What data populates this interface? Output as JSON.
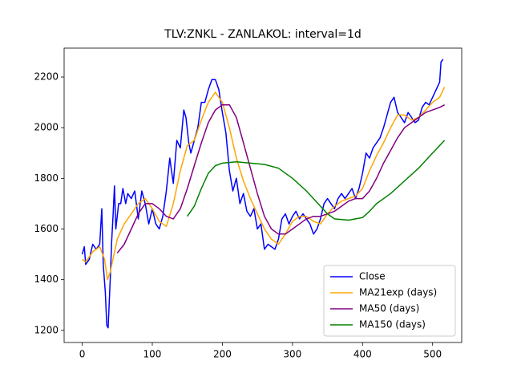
{
  "chart_data": {
    "type": "line",
    "title": "TLV:ZNKL - ZANLAKOL: interval=1d",
    "xlim": [
      -25.8,
      541.5
    ],
    "ylim": [
      1152,
      2314
    ],
    "xticks": [
      0,
      100,
      200,
      300,
      400,
      500
    ],
    "yticks": [
      1200,
      1400,
      1600,
      1800,
      2000,
      2200
    ],
    "legend": "lower right",
    "series": [
      {
        "name": "Close",
        "color": "#0000ff",
        "x": [
          0,
          3,
          5,
          10,
          15,
          20,
          25,
          28,
          30,
          33,
          35,
          37,
          40,
          42,
          44,
          46,
          48,
          52,
          55,
          58,
          62,
          65,
          70,
          75,
          80,
          85,
          90,
          95,
          100,
          105,
          110,
          115,
          120,
          125,
          130,
          135,
          140,
          145,
          148,
          152,
          155,
          160,
          165,
          170,
          175,
          180,
          185,
          190,
          195,
          200,
          205,
          210,
          215,
          220,
          225,
          230,
          235,
          240,
          245,
          250,
          255,
          260,
          265,
          270,
          275,
          280,
          285,
          290,
          295,
          300,
          305,
          310,
          315,
          320,
          325,
          330,
          335,
          340,
          345,
          350,
          355,
          360,
          365,
          370,
          375,
          380,
          385,
          390,
          395,
          400,
          405,
          410,
          415,
          420,
          425,
          430,
          435,
          440,
          445,
          450,
          455,
          460,
          465,
          470,
          475,
          480,
          485,
          490,
          495,
          500,
          505,
          510,
          512,
          515
        ],
        "values": [
          1500,
          1530,
          1460,
          1480,
          1540,
          1520,
          1540,
          1680,
          1460,
          1350,
          1220,
          1210,
          1400,
          1550,
          1650,
          1770,
          1600,
          1700,
          1700,
          1760,
          1700,
          1740,
          1720,
          1750,
          1640,
          1750,
          1700,
          1620,
          1680,
          1620,
          1600,
          1650,
          1750,
          1880,
          1780,
          1950,
          1920,
          2070,
          2040,
          1940,
          1900,
          1950,
          2000,
          2100,
          2100,
          2150,
          2190,
          2190,
          2150,
          2060,
          1980,
          1830,
          1750,
          1800,
          1700,
          1740,
          1670,
          1650,
          1680,
          1600,
          1620,
          1520,
          1540,
          1530,
          1520,
          1560,
          1640,
          1660,
          1620,
          1650,
          1670,
          1640,
          1660,
          1640,
          1620,
          1580,
          1600,
          1640,
          1700,
          1720,
          1700,
          1680,
          1720,
          1740,
          1720,
          1740,
          1760,
          1720,
          1760,
          1820,
          1900,
          1880,
          1920,
          1940,
          1960,
          2000,
          2050,
          2100,
          2120,
          2060,
          2040,
          2020,
          2060,
          2040,
          2020,
          2030,
          2080,
          2100,
          2090,
          2120,
          2150,
          2180,
          2260,
          2270
        ]
      },
      {
        "name": "MA21exp (days)",
        "color": "#ffa500",
        "x": [
          0,
          5,
          15,
          25,
          32,
          36,
          40,
          50,
          60,
          70,
          80,
          90,
          100,
          110,
          120,
          130,
          140,
          150,
          160,
          170,
          180,
          190,
          200,
          210,
          220,
          230,
          240,
          250,
          260,
          270,
          280,
          290,
          300,
          310,
          320,
          330,
          340,
          350,
          360,
          370,
          380,
          390,
          400,
          410,
          420,
          430,
          440,
          450,
          460,
          470,
          480,
          490,
          500,
          510,
          517
        ],
        "values": [
          1480,
          1470,
          1510,
          1530,
          1480,
          1400,
          1430,
          1560,
          1620,
          1660,
          1700,
          1720,
          1680,
          1630,
          1610,
          1700,
          1830,
          1930,
          1950,
          2030,
          2100,
          2140,
          2100,
          2000,
          1880,
          1790,
          1720,
          1660,
          1600,
          1560,
          1540,
          1580,
          1630,
          1650,
          1650,
          1630,
          1620,
          1660,
          1690,
          1710,
          1720,
          1730,
          1760,
          1830,
          1890,
          1940,
          2000,
          2050,
          2050,
          2030,
          2040,
          2070,
          2100,
          2120,
          2160
        ]
      },
      {
        "name": "MA50 (days)",
        "color": "#800080",
        "x": [
          50,
          60,
          70,
          80,
          90,
          100,
          110,
          120,
          130,
          140,
          150,
          160,
          170,
          180,
          190,
          200,
          210,
          220,
          230,
          240,
          250,
          260,
          270,
          280,
          290,
          300,
          310,
          320,
          330,
          340,
          350,
          360,
          370,
          380,
          390,
          400,
          410,
          420,
          430,
          440,
          450,
          460,
          470,
          480,
          490,
          500,
          510,
          517
        ],
        "values": [
          1505,
          1540,
          1600,
          1660,
          1700,
          1700,
          1680,
          1650,
          1640,
          1680,
          1760,
          1850,
          1940,
          2020,
          2070,
          2090,
          2090,
          2040,
          1940,
          1840,
          1740,
          1650,
          1600,
          1580,
          1580,
          1600,
          1620,
          1640,
          1650,
          1650,
          1660,
          1670,
          1690,
          1710,
          1720,
          1720,
          1750,
          1800,
          1860,
          1910,
          1960,
          2000,
          2020,
          2040,
          2060,
          2070,
          2080,
          2090
        ]
      },
      {
        "name": "MA150 (days)",
        "color": "#008000",
        "x": [
          150,
          160,
          170,
          180,
          190,
          200,
          220,
          240,
          260,
          280,
          300,
          320,
          340,
          350,
          360,
          380,
          400,
          410,
          420,
          440,
          460,
          480,
          500,
          517
        ],
        "values": [
          1650,
          1690,
          1760,
          1820,
          1850,
          1860,
          1865,
          1860,
          1855,
          1840,
          1800,
          1750,
          1690,
          1660,
          1640,
          1635,
          1645,
          1670,
          1700,
          1740,
          1790,
          1840,
          1900,
          1950
        ]
      }
    ]
  }
}
